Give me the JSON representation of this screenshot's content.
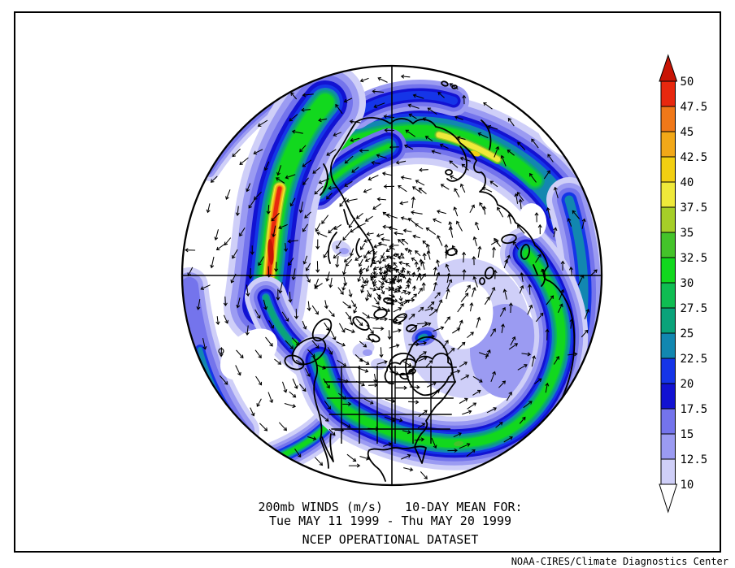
{
  "title": {
    "line1": "200mb WINDS (m/s)   10-DAY MEAN FOR:",
    "line2": "Tue MAY 11 1999 - Thu MAY 20 1999",
    "line3": "NCEP OPERATIONAL DATASET"
  },
  "credit": "NOAA-CIRES/Climate Diagnostics Center",
  "map": {
    "view": "Northern Hemisphere polar view",
    "variable": "200mb wind speed",
    "units": "m/s"
  },
  "colorbar": {
    "tick_labels": [
      "50",
      "47.5",
      "45",
      "42.5",
      "40",
      "37.5",
      "35",
      "32.5",
      "30",
      "27.5",
      "25",
      "22.5",
      "20",
      "17.5",
      "15",
      "12.5",
      "10"
    ],
    "cell_colors_top_to_bottom": [
      "#e8280e",
      "#f07818",
      "#f2a818",
      "#f2cf12",
      "#efe93a",
      "#a6ce28",
      "#44c32a",
      "#12d81e",
      "#0fbd52",
      "#0aa37a",
      "#1287b0",
      "#1535e8",
      "#1212d2",
      "#7474ec",
      "#9b9bf2",
      "#cfcff8"
    ],
    "over_arrow_color": "#c81405",
    "under_arrow_color": "#ffffff"
  }
}
